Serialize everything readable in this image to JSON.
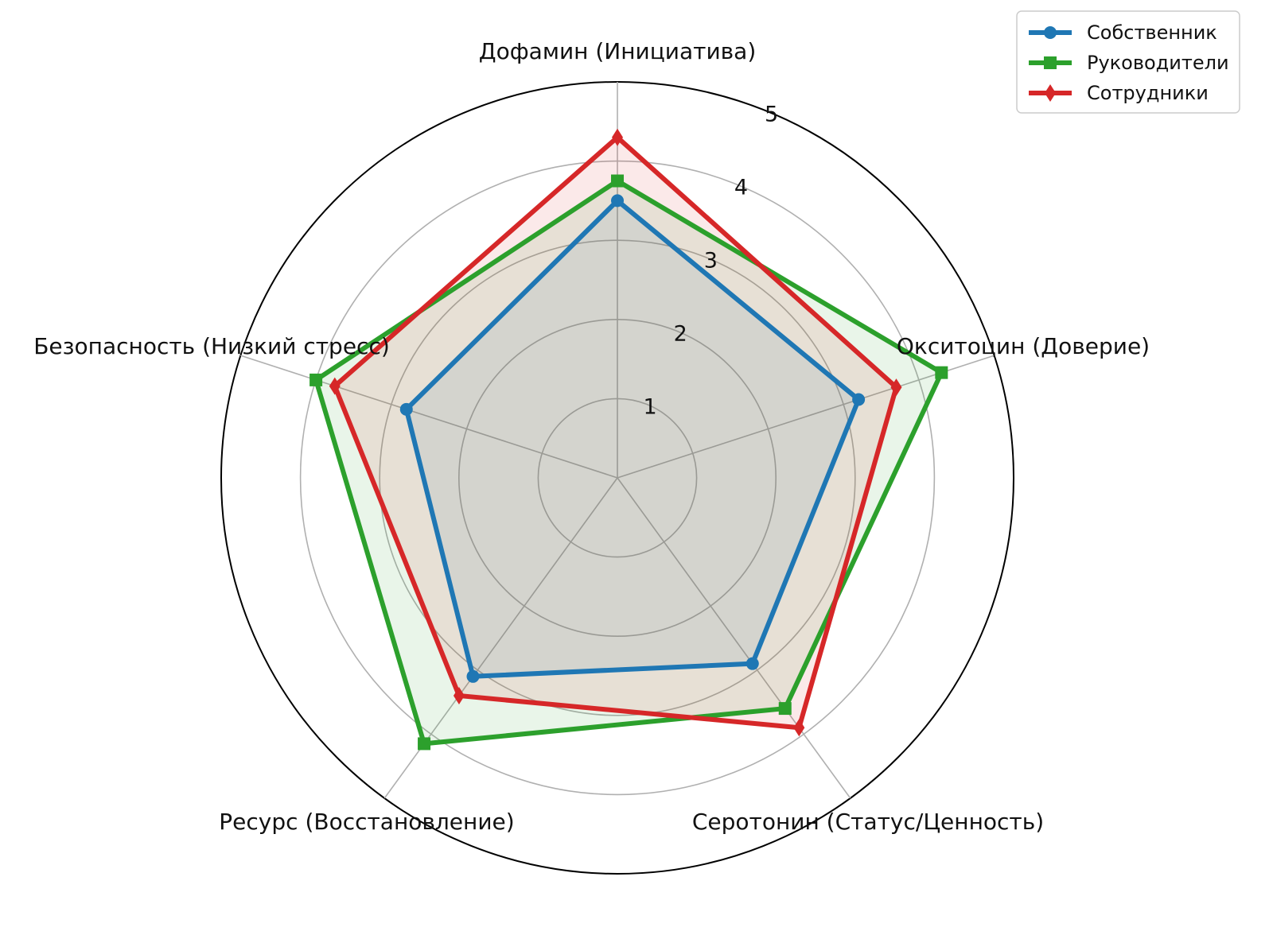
{
  "chart_data": {
    "type": "radar",
    "axes": [
      "Дофамин (Инициатива)",
      "Окситоцин (Доверие)",
      "Серотонин (Статус/Ценность)",
      "Ресурс (Восстановление)",
      "Безопасность (Низкий стресс)"
    ],
    "rlim": [
      0,
      5
    ],
    "rticks": [
      "1",
      "2",
      "3",
      "4",
      "5"
    ],
    "grid": true,
    "legend_position": "top-right",
    "series": [
      {
        "name": "Собственник",
        "values": [
          3.5,
          3.2,
          2.9,
          3.1,
          2.8
        ],
        "color": "#1f77b4",
        "marker": "circle"
      },
      {
        "name": "Руководители",
        "values": [
          3.75,
          4.3,
          3.6,
          4.15,
          4.0
        ],
        "color": "#2ca02c",
        "marker": "square"
      },
      {
        "name": "Сотрудники",
        "values": [
          4.3,
          3.7,
          3.9,
          3.4,
          3.75
        ],
        "color": "#d62728",
        "marker": "diamond"
      }
    ]
  }
}
